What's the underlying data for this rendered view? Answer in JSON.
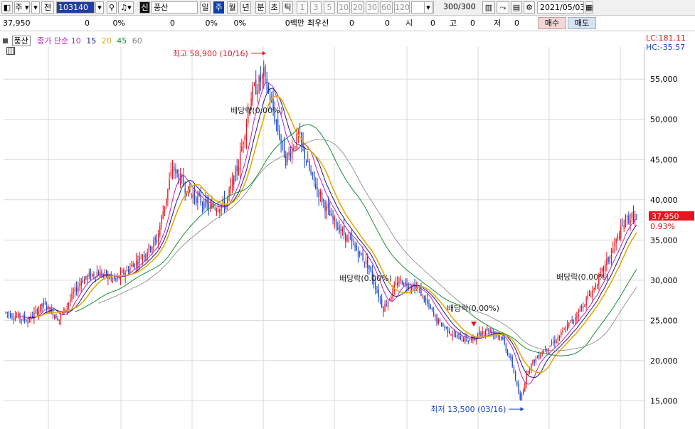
{
  "toolbar": {
    "stock_type": "주",
    "prev_label": "전",
    "code": "103140",
    "mode_label": "신",
    "name": "풍산",
    "periods": [
      "일",
      "주",
      "월",
      "년",
      "분",
      "초",
      "틱"
    ],
    "active_period": "주",
    "numbers": [
      "1",
      "3",
      "5",
      "10",
      "20",
      "30",
      "60",
      "120"
    ],
    "count": "300",
    "count_total": "/300",
    "date": "2021/05/03"
  },
  "infobar": {
    "price": "37,950",
    "v1": "0",
    "v2": "0%",
    "v3": "0",
    "v4": "0%",
    "v5": "0%",
    "amount_label": "0백만",
    "best_label": "최우선",
    "v6": "0",
    "v7": "0",
    "open_label": "시",
    "open_val": "0",
    "high_label": "고",
    "high_val": "0",
    "low_label": "저",
    "low_val": "0",
    "buy_label": "매수",
    "sell_label": "매도"
  },
  "colors": {
    "up": "#e8141e",
    "down": "#1446d2",
    "ma10": "#c020c0",
    "ma15": "#1a1a8c",
    "ma20": "#e8a800",
    "ma45": "#1a8c3a",
    "ma60": "#808080"
  },
  "chart_data": {
    "type": "candlestick",
    "stock_name": "풍산",
    "legend": {
      "prefix": "종가 단순",
      "periods": [
        "10",
        "15",
        "20",
        "45",
        "60"
      ]
    },
    "lc_text": "LC:181.11",
    "hc_text": "HC:-35.57",
    "current_price": "37,950",
    "current_change": "0.93%",
    "yticks": [
      "55,000",
      "50,000",
      "45,000",
      "40,000",
      "35,000",
      "30,000",
      "25,000",
      "20,000",
      "15,000"
    ],
    "ytick_values": [
      55000,
      50000,
      45000,
      40000,
      35000,
      30000,
      25000,
      20000,
      15000
    ],
    "y_range": [
      11500,
      59000
    ],
    "high_label": "최고 58,900 (10/16)",
    "low_label": "최저 13,500 (03/16)",
    "dividend_label_1": "배당락(0.00%)",
    "dividend_label_2": "배당락(0.00%)",
    "dividend_label_3": "배당락(0.00%)",
    "dividend_label_4": "배당락(0.00%)",
    "bars": 300,
    "anchors": [
      [
        0,
        26000
      ],
      [
        14,
        25000
      ],
      [
        24,
        27000
      ],
      [
        34,
        25200
      ],
      [
        48,
        30000
      ],
      [
        58,
        31000
      ],
      [
        70,
        30000
      ],
      [
        84,
        32500
      ],
      [
        96,
        35000
      ],
      [
        106,
        44000
      ],
      [
        116,
        41000
      ],
      [
        130,
        39000
      ],
      [
        140,
        39500
      ],
      [
        148,
        44500
      ],
      [
        156,
        53000
      ],
      [
        164,
        55500
      ],
      [
        172,
        49500
      ],
      [
        178,
        45000
      ],
      [
        186,
        48000
      ],
      [
        194,
        43000
      ],
      [
        206,
        38000
      ],
      [
        218,
        35000
      ],
      [
        230,
        32000
      ],
      [
        240,
        26500
      ],
      [
        250,
        30000
      ],
      [
        262,
        29000
      ],
      [
        274,
        25000
      ],
      [
        286,
        23000
      ],
      [
        296,
        22500
      ],
      [
        305,
        24000
      ],
      [
        315,
        23000
      ],
      [
        322,
        19500
      ],
      [
        327,
        15000
      ],
      [
        332,
        19000
      ],
      [
        340,
        21000
      ],
      [
        352,
        23000
      ],
      [
        362,
        25500
      ],
      [
        374,
        29000
      ],
      [
        384,
        33000
      ],
      [
        394,
        37500
      ],
      [
        401,
        38000
      ]
    ],
    "close_last": 37950
  }
}
